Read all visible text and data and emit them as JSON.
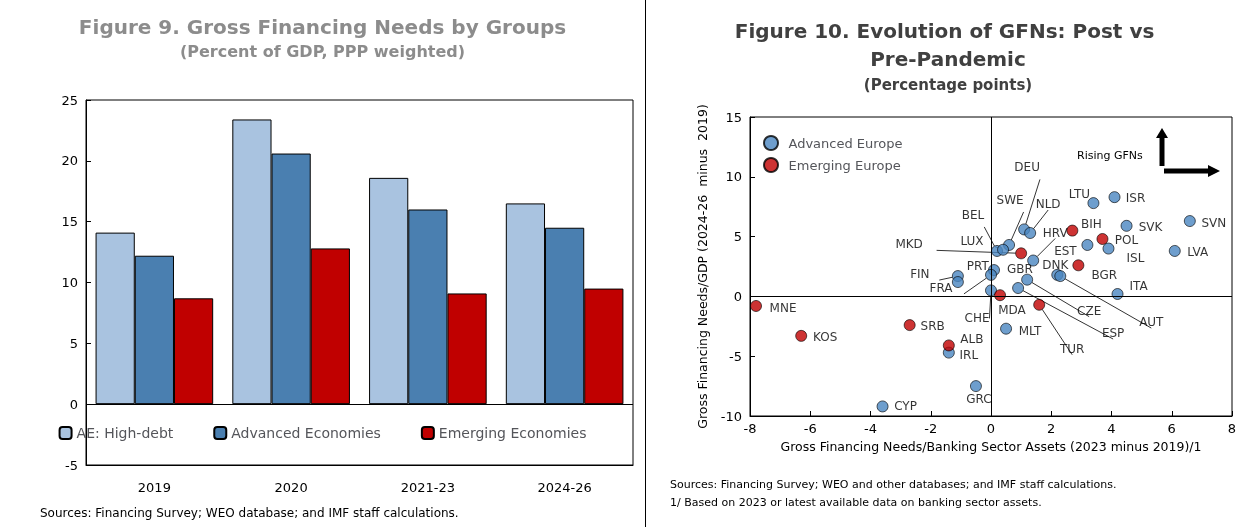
{
  "chart_data": [
    {
      "type": "bar",
      "title": "Figure 9. Gross Financing Needs by Groups",
      "subtitle": "(Percent of GDP, PPP weighted)",
      "categories": [
        "2019",
        "2020",
        "2021-23",
        "2024-26"
      ],
      "series": [
        {
          "name": "AE: High-debt",
          "color": "#a9c3e0",
          "values": [
            14.1,
            23.4,
            18.6,
            16.5
          ]
        },
        {
          "name": "Advanced Economies",
          "color": "#4a7fb0",
          "values": [
            12.2,
            20.6,
            16.0,
            14.5
          ]
        },
        {
          "name": "Emerging Economies",
          "color": "#c00000",
          "values": [
            8.7,
            12.8,
            9.1,
            9.5
          ]
        }
      ],
      "ylim": [
        -5,
        25
      ],
      "yticks": [
        -5,
        0,
        5,
        10,
        15,
        20,
        25
      ],
      "legend": "bottom",
      "ref_lines": [
        {
          "axis": "y",
          "value": 0,
          "color": "#000000"
        }
      ],
      "annotations": [
        "Sources: Financing Survey; WEO database; and IMF staff calculations."
      ]
    },
    {
      "type": "scatter",
      "title": "Figure 10. Evolution of GFNs: Post vs Pre-Pandemic",
      "subtitle": "(Percentage points)",
      "xlabel": "Gross Financing Needs/Banking Sector Assets (2023 minus 2019)/1",
      "ylabel": "Gross Financing Needs/GDP (2024-26  minus  2019)",
      "series": [
        {
          "name": "Advanced Europe",
          "color": "#4a86c0",
          "x": [
            4.1,
            3.4,
            4.5,
            6.6,
            6.1,
            3.9,
            3.2,
            1.1,
            1.3,
            0.6,
            0.2,
            0.4,
            1.4,
            2.2,
            2.3,
            1.2,
            0.9,
            4.2,
            -1.1,
            -1.1,
            0.1,
            0.0,
            0.0,
            0.5,
            -1.4,
            -0.5,
            -3.6
          ],
          "values": [
            8.3,
            7.8,
            5.9,
            6.3,
            3.8,
            4.0,
            4.3,
            5.6,
            5.3,
            4.3,
            3.8,
            3.9,
            3.0,
            1.8,
            1.7,
            1.4,
            0.7,
            0.2,
            1.7,
            1.2,
            2.2,
            1.8,
            0.5,
            -2.7,
            -4.7,
            -7.5,
            -9.2
          ],
          "value_labels": [
            "ISR",
            "LTU",
            "SVK",
            "SVN",
            "LVA",
            "ISL",
            "EST",
            "DEU",
            "NLD",
            "SWE",
            "BEL",
            "LUX",
            "HRV",
            "DNK",
            "AUT",
            "CZE",
            "ESP",
            "ITA",
            "FIN",
            "PRT",
            "GBR",
            "FRA",
            "CHE",
            "MLT",
            "IRL",
            "GRC",
            "CYP"
          ]
        },
        {
          "name": "Emerging Europe",
          "color": "#c00000",
          "x": [
            2.7,
            3.7,
            2.9,
            1.0,
            0.3,
            1.6,
            -7.8,
            -6.3,
            -2.7,
            -1.4
          ],
          "values": [
            5.5,
            4.8,
            2.6,
            3.6,
            0.1,
            -0.7,
            -0.8,
            -3.3,
            -2.4,
            -4.1
          ],
          "value_labels": [
            "BIH",
            "POL",
            "BGR",
            "MKD",
            "MDA",
            "TUR",
            "MNE",
            "KOS",
            "SRB",
            "ALB"
          ]
        }
      ],
      "xlim": [
        -8,
        8
      ],
      "xticks": [
        -8,
        -6,
        -4,
        -2,
        0,
        2,
        4,
        6,
        8
      ],
      "ylim": [
        -10,
        15
      ],
      "yticks": [
        -10,
        -5,
        0,
        5,
        10,
        15
      ],
      "legend": "top left",
      "marker": "circle",
      "ref_lines": [
        {
          "axis": "x",
          "value": 0,
          "color": "#000000"
        },
        {
          "axis": "y",
          "value": 0,
          "color": "#000000"
        }
      ],
      "annotations": [
        "Rising GFNs",
        "Sources: Financing Survey; WEO and other databases; and IMF staff calculations.",
        "1/ Based on 2023 or latest available data on banking sector assets."
      ]
    }
  ]
}
